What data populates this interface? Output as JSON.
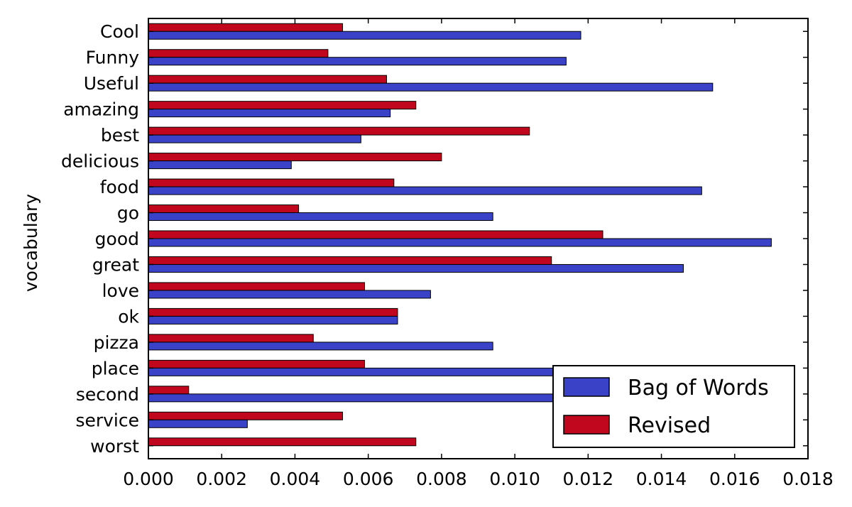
{
  "chart_data": {
    "type": "bar",
    "orientation": "horizontal",
    "categories": [
      "Cool",
      "Funny",
      "Useful",
      "amazing",
      "best",
      "delicious",
      "food",
      "go",
      "good",
      "great",
      "love",
      "ok",
      "pizza",
      "place",
      "second",
      "service",
      "worst"
    ],
    "series": [
      {
        "name": "Bag of Words",
        "color": "#3a43c8",
        "values": [
          0.0118,
          0.0114,
          0.0154,
          0.0066,
          0.0058,
          0.0039,
          0.0151,
          0.0094,
          0.017,
          0.0146,
          0.0077,
          0.0068,
          0.0094,
          0.016,
          0.016,
          0.0027,
          0.0
        ]
      },
      {
        "name": "Revised",
        "color": "#c0071e",
        "values": [
          0.0053,
          0.0049,
          0.0065,
          0.0073,
          0.0104,
          0.008,
          0.0067,
          0.0041,
          0.0124,
          0.011,
          0.0059,
          0.0068,
          0.0045,
          0.0059,
          0.0011,
          0.0053,
          0.0073
        ]
      }
    ],
    "title": "",
    "xlabel": "",
    "ylabel": "vocabulary",
    "xlim": [
      0.0,
      0.018
    ],
    "xticks": [
      "0.000",
      "0.002",
      "0.004",
      "0.006",
      "0.008",
      "0.010",
      "0.012",
      "0.014",
      "0.016",
      "0.018"
    ],
    "grid": false,
    "legend_position": "bottom-right",
    "legend_entries": [
      "Bag of Words",
      "Revised"
    ]
  }
}
